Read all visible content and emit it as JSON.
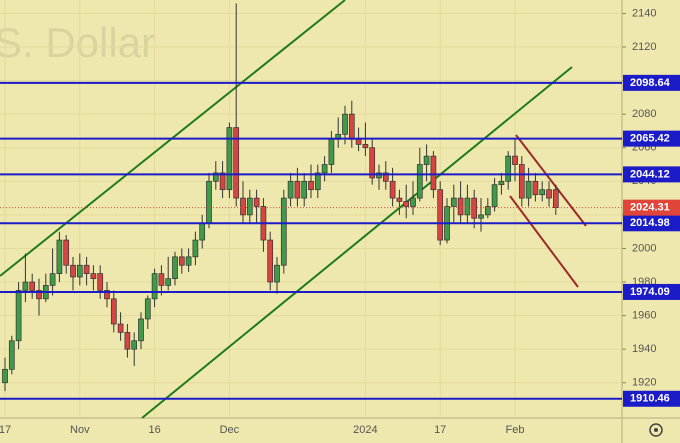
{
  "chart_data": {
    "type": "candlestick",
    "watermark": "S. Dollar",
    "categories": [
      "17",
      null,
      null,
      null,
      null,
      null,
      null,
      null,
      null,
      null,
      null,
      "Nov",
      null,
      null,
      null,
      null,
      null,
      null,
      null,
      null,
      null,
      null,
      "16",
      null,
      null,
      null,
      null,
      null,
      null,
      null,
      null,
      null,
      null,
      "Dec",
      null,
      null,
      null,
      null,
      null,
      null,
      null,
      null,
      null,
      null,
      null,
      null,
      null,
      null,
      null,
      null,
      null,
      null,
      null,
      "2024",
      null,
      null,
      null,
      null,
      null,
      null,
      null,
      null,
      null,
      null,
      "17",
      null,
      null,
      null,
      null,
      null,
      null,
      null,
      null,
      null,
      null,
      "Feb",
      null,
      null,
      null,
      null,
      null,
      null
    ],
    "open": [
      1920,
      1928,
      1945,
      1975,
      1980,
      1975,
      1970,
      1978,
      1985,
      2005,
      1990,
      1983,
      1990,
      1985,
      1985,
      1975,
      1970,
      1955,
      1950,
      1940,
      1945,
      1958,
      1970,
      1985,
      1978,
      1982,
      1995,
      1990,
      1995,
      2005,
      2015,
      2040,
      2045,
      2035,
      2072,
      2030,
      2020,
      2030,
      2025,
      2005,
      1980,
      1990,
      2030,
      2040,
      2030,
      2040,
      2035,
      2045,
      2050,
      2065,
      2068,
      2080,
      2065,
      2062,
      2060,
      2042,
      2045,
      2040,
      2030,
      2028,
      2025,
      2030,
      2050,
      2055,
      2035,
      2005,
      2025,
      2030,
      2020,
      2030,
      2018,
      2020,
      2025,
      2038,
      2040,
      2055,
      2050,
      2030,
      2040,
      2032,
      2035,
      2035
    ],
    "high": [
      1935,
      1948,
      1980,
      1997,
      1985,
      1982,
      1985,
      2000,
      2010,
      2008,
      1995,
      1997,
      1995,
      1990,
      1990,
      1980,
      1975,
      1962,
      1955,
      1950,
      1962,
      1972,
      1988,
      1990,
      1995,
      1998,
      2000,
      2000,
      2010,
      2020,
      2045,
      2052,
      2052,
      2075,
      2146,
      2040,
      2035,
      2035,
      2030,
      2010,
      1995,
      2035,
      2045,
      2048,
      2045,
      2050,
      2050,
      2055,
      2070,
      2078,
      2085,
      2088,
      2072,
      2075,
      2065,
      2050,
      2052,
      2048,
      2035,
      2038,
      2040,
      2060,
      2062,
      2058,
      2040,
      2030,
      2038,
      2040,
      2038,
      2035,
      2030,
      2030,
      2042,
      2045,
      2058,
      2065,
      2055,
      2048,
      2045,
      2040,
      2040,
      2038
    ],
    "low": [
      1915,
      1925,
      1940,
      1968,
      1970,
      1960,
      1968,
      1972,
      1980,
      1985,
      1975,
      1978,
      1978,
      1975,
      1970,
      1965,
      1950,
      1945,
      1935,
      1930,
      1940,
      1952,
      1965,
      1972,
      1975,
      1978,
      1985,
      1986,
      1990,
      2000,
      2012,
      2035,
      2030,
      2030,
      2025,
      2015,
      2015,
      2015,
      1998,
      1975,
      1973,
      1985,
      2025,
      2025,
      2025,
      2030,
      2030,
      2040,
      2045,
      2060,
      2062,
      2060,
      2058,
      2055,
      2038,
      2035,
      2035,
      2025,
      2020,
      2018,
      2020,
      2028,
      2040,
      2030,
      2002,
      2003,
      2015,
      2015,
      2015,
      2012,
      2010,
      2018,
      2022,
      2032,
      2035,
      2040,
      2025,
      2025,
      2028,
      2028,
      2025,
      2020
    ],
    "close": [
      1928,
      1945,
      1975,
      1980,
      1975,
      1970,
      1978,
      1985,
      2005,
      1990,
      1983,
      1990,
      1985,
      1982,
      1975,
      1970,
      1955,
      1950,
      1940,
      1945,
      1958,
      1970,
      1985,
      1978,
      1982,
      1995,
      1990,
      1995,
      2005,
      2015,
      2040,
      2045,
      2035,
      2072,
      2030,
      2020,
      2030,
      2025,
      2005,
      1980,
      1990,
      2030,
      2040,
      2030,
      2040,
      2035,
      2045,
      2050,
      2065,
      2068,
      2080,
      2065,
      2062,
      2060,
      2042,
      2045,
      2040,
      2030,
      2028,
      2025,
      2030,
      2050,
      2055,
      2035,
      2005,
      2025,
      2030,
      2020,
      2030,
      2018,
      2020,
      2025,
      2038,
      2040,
      2055,
      2050,
      2030,
      2040,
      2032,
      2035,
      2030,
      2024.31
    ],
    "up_color": "#3f9a4a",
    "down_color": "#d64541",
    "ylim": [
      1899,
      2148
    ],
    "yticks": [
      1920,
      1940,
      1960,
      1980,
      2000,
      2020,
      2040,
      2060,
      2080,
      2100,
      2120,
      2140
    ],
    "grid": true,
    "levels": [
      2098.64,
      2065.42,
      2044.12,
      2014.98,
      1974.09,
      1910.46
    ],
    "level_color": "#1b1bc8",
    "last_price": 2024.31,
    "last_price_color": "#e0453a"
  }
}
